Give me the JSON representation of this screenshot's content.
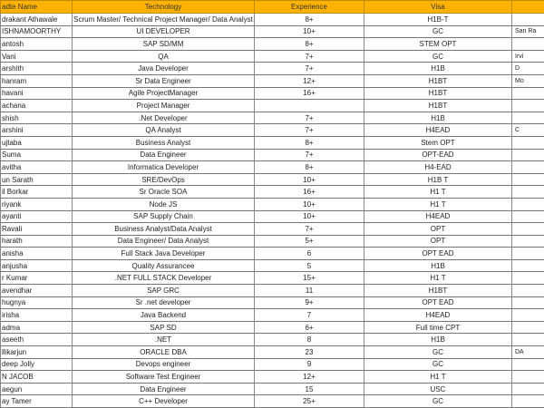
{
  "header_color": "#FFB300",
  "columns": [
    "adte Name",
    "Technology",
    "Experience",
    "Visa",
    ""
  ],
  "rows": [
    [
      "drakant Athawale",
      "Scrum Master/ Technical Project Manager/ Data Analyst",
      "8+",
      "H1B-T",
      ""
    ],
    [
      "ISHNAMOORTHY",
      "UI DEVELOPER",
      "10+",
      "GC",
      "San Ra"
    ],
    [
      "antosh",
      "SAP SD/MM",
      "8+",
      "STEM OPT",
      ""
    ],
    [
      "Vani",
      "QA",
      "7+",
      "GC",
      "Irvi"
    ],
    [
      "arshith",
      "Java Developer",
      "7+",
      "H1B",
      "D"
    ],
    [
      "hanram",
      "Sr Data Engineer",
      "12+",
      "H1BT",
      "Mo"
    ],
    [
      "havani",
      "Agile ProjectManager",
      "16+",
      "H1BT",
      ""
    ],
    [
      "achana",
      "Project Manager",
      "",
      "H1BT",
      ""
    ],
    [
      "shish",
      ".Net Developer",
      "7+",
      "H1B",
      ""
    ],
    [
      "arshini",
      "QA Analyst",
      "7+",
      "H4EAD",
      "C"
    ],
    [
      "ujtaba",
      "Business Analyst",
      "8+",
      "Stem OPT",
      ""
    ],
    [
      "Suma",
      "Data Engineer",
      "7+",
      "OPT-EAD",
      ""
    ],
    [
      "avitha",
      "Informatica Developer",
      "8+",
      "H4-EAD",
      ""
    ],
    [
      "un Sarath",
      "SRE/DevOps",
      "10+",
      "H1B T",
      ""
    ],
    [
      "il Borkar",
      "Sr Oracle SOA",
      "16+",
      "H1 T",
      ""
    ],
    [
      "riyank",
      "Node JS",
      "10+",
      "H1 T",
      ""
    ],
    [
      "ayanti",
      "SAP Supply Chain",
      "10+",
      "H4EAD",
      ""
    ],
    [
      "Ravali",
      "Business Analyst/Data Analyst",
      "7+",
      "OPT",
      ""
    ],
    [
      "harath",
      "Data Engineer/ Data Analyst",
      "5+",
      "OPT",
      ""
    ],
    [
      "anisha",
      "Full Stack Java Developer",
      "6",
      "OPT EAD",
      ""
    ],
    [
      "anjusha",
      "Quality Assurancee",
      "5",
      "H1B",
      ""
    ],
    [
      "r Kumar",
      ".NET FULL STACK Developer",
      "15+",
      "H1 T",
      ""
    ],
    [
      "avendhar",
      "SAP GRC",
      "11",
      "H1BT",
      ""
    ],
    [
      "hugnya",
      "Sr .net developer",
      "9+",
      "OPT EAD",
      ""
    ],
    [
      "irisha",
      "Java Backend",
      "7",
      "H4EAD",
      ""
    ],
    [
      "adma",
      "SAP SD",
      "6+",
      "Full time CPT",
      ""
    ],
    [
      "aseeth",
      ".NET",
      "8",
      "H1B",
      ""
    ],
    [
      "llikarjun",
      "ORACLE DBA",
      "23",
      "GC",
      "DA"
    ],
    [
      "deep Jolly",
      "Devops engineer",
      "9",
      "GC",
      ""
    ],
    [
      "N JACOB",
      "Software Test Engineer",
      "12+",
      "H1 T",
      ""
    ],
    [
      "aegun",
      "Data Engineer",
      "15",
      "USC",
      ""
    ],
    [
      "ay Tamer",
      "C++ Developer",
      "25+",
      "GC",
      ""
    ]
  ]
}
